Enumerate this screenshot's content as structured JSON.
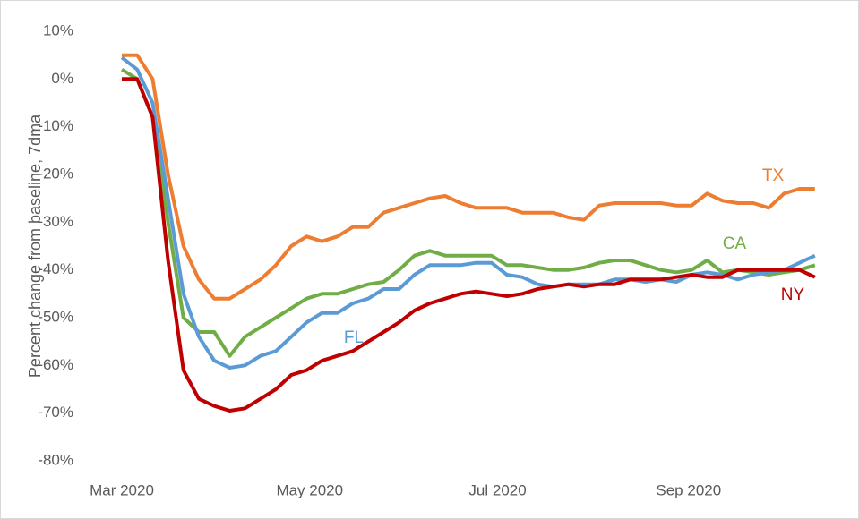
{
  "chart_data": {
    "type": "line",
    "y_label": "Percent change from baseline, 7dma",
    "x": [
      0,
      5,
      10,
      15,
      20,
      25,
      30,
      35,
      40,
      45,
      50,
      55,
      60,
      65,
      70,
      75,
      80,
      85,
      90,
      95,
      100,
      105,
      110,
      115,
      120,
      125,
      130,
      135,
      140,
      145,
      150,
      155,
      160,
      165,
      170,
      175,
      180,
      185,
      190,
      195,
      200,
      205,
      210,
      215,
      220,
      225
    ],
    "xlim": [
      0,
      230
    ],
    "xticks": [
      {
        "value": 0,
        "label": "Mar 2020"
      },
      {
        "value": 61,
        "label": "May 2020"
      },
      {
        "value": 122,
        "label": "Jul 2020"
      },
      {
        "value": 184,
        "label": "Sep 2020"
      }
    ],
    "ylim": [
      -80,
      10
    ],
    "yticks": [
      {
        "value": 10,
        "label": "10%"
      },
      {
        "value": 0,
        "label": "0%"
      },
      {
        "value": -10,
        "label": "-10%"
      },
      {
        "value": -20,
        "label": "-20%"
      },
      {
        "value": -30,
        "label": "-30%"
      },
      {
        "value": -40,
        "label": "-40%"
      },
      {
        "value": -50,
        "label": "-50%"
      },
      {
        "value": -60,
        "label": "-60%"
      },
      {
        "value": -70,
        "label": "-70%"
      },
      {
        "value": -80,
        "label": "-80%"
      }
    ],
    "grid": false,
    "series": [
      {
        "name": "TX",
        "color": "#ED7D31",
        "values": [
          5,
          5,
          0,
          -20,
          -35,
          -42,
          -46,
          -46,
          -44,
          -42,
          -39,
          -35,
          -33,
          -34,
          -33,
          -31,
          -31,
          -28,
          -27,
          -26,
          -25,
          -24.5,
          -26,
          -27,
          -27,
          -27,
          -28,
          -28,
          -28,
          -29,
          -29.5,
          -26.5,
          -26,
          -26,
          -26,
          -26,
          -26.5,
          -26.5,
          -24,
          -25.5,
          -26,
          -26,
          -27,
          -24,
          -23,
          -23
        ]
      },
      {
        "name": "CA",
        "color": "#70AD47",
        "values": [
          2,
          0,
          -8,
          -30,
          -50,
          -53,
          -53,
          -58,
          -54,
          -52,
          -50,
          -48,
          -46,
          -45,
          -45,
          -44,
          -43,
          -42.5,
          -40,
          -37,
          -36,
          -37,
          -37,
          -37,
          -37,
          -39,
          -39,
          -39.5,
          -40,
          -40,
          -39.5,
          -38.5,
          -38,
          -38,
          -39,
          -40,
          -40.5,
          -40,
          -38,
          -40.5,
          -40,
          -40.5,
          -41,
          -40.5,
          -40,
          -39
        ]
      },
      {
        "name": "FL",
        "color": "#5B9BD5",
        "values": [
          4.5,
          2,
          -5,
          -25,
          -45,
          -54,
          -59,
          -60.5,
          -60,
          -58,
          -57,
          -54,
          -51,
          -49,
          -49,
          -47,
          -46,
          -44,
          -44,
          -41,
          -39,
          -39,
          -39,
          -38.5,
          -38.5,
          -41,
          -41.5,
          -43,
          -43.5,
          -43,
          -43,
          -43,
          -42,
          -42,
          -42.5,
          -42,
          -42.5,
          -41,
          -40.5,
          -41,
          -42,
          -41,
          -40.5,
          -40,
          -38.5,
          -37
        ]
      },
      {
        "name": "NY",
        "color": "#C00000",
        "values": [
          0,
          0,
          -8,
          -38,
          -61,
          -67,
          -68.5,
          -69.5,
          -69,
          -67,
          -65,
          -62,
          -61,
          -59,
          -58,
          -57,
          -55,
          -53,
          -51,
          -48.5,
          -47,
          -46,
          -45,
          -44.5,
          -45,
          -45.5,
          -45,
          -44,
          -43.5,
          -43,
          -43.5,
          -43,
          -43,
          -42,
          -42,
          -42,
          -41.5,
          -41,
          -41.5,
          -41.5,
          -40,
          -40,
          -40,
          -40,
          -40,
          -41.5
        ]
      }
    ]
  }
}
